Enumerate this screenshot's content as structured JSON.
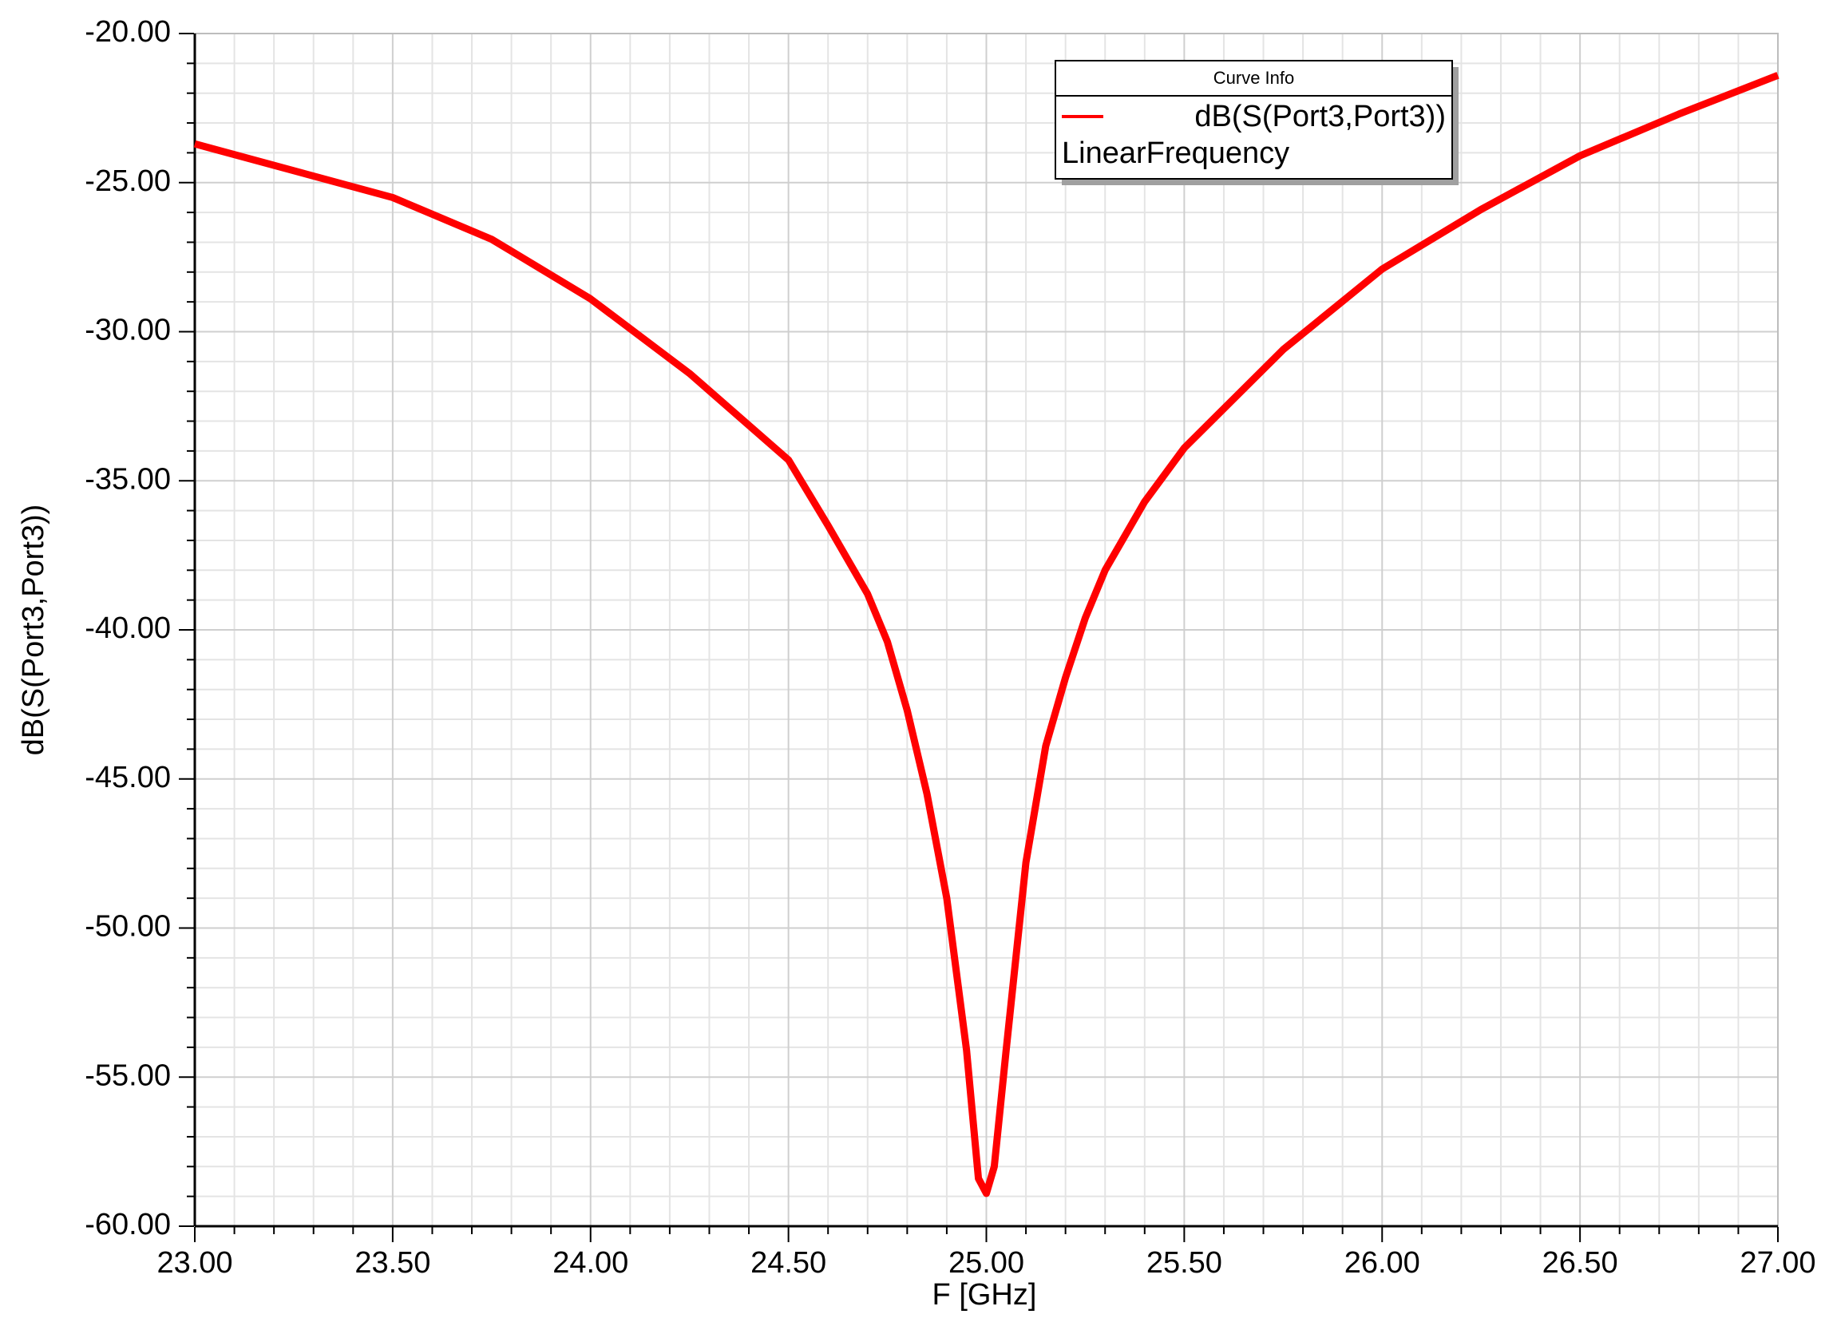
{
  "chart_data": {
    "type": "line",
    "legend_title": "Curve Info",
    "x_label": "F [GHz]",
    "y_label": "dB(S(Port3,Port3))",
    "x": [
      23.0,
      23.25,
      23.5,
      23.75,
      24.0,
      24.25,
      24.5,
      24.6,
      24.7,
      24.75,
      24.8,
      24.85,
      24.9,
      24.95,
      24.98,
      25.0,
      25.02,
      25.05,
      25.1,
      25.15,
      25.2,
      25.25,
      25.3,
      25.4,
      25.5,
      25.75,
      26.0,
      26.25,
      26.5,
      26.75,
      27.0
    ],
    "series": [
      {
        "name": "dB(S(Port3,Port3))",
        "context": "LinearFrequency",
        "color": "#ff0000",
        "values": [
          -23.7,
          -24.6,
          -25.5,
          -26.9,
          -28.9,
          -31.4,
          -34.3,
          -36.5,
          -38.8,
          -40.4,
          -42.7,
          -45.5,
          -49.0,
          -54.1,
          -58.4,
          -58.9,
          -58.0,
          -54.1,
          -47.8,
          -43.9,
          -41.6,
          -39.6,
          -38.0,
          -35.7,
          -33.9,
          -30.6,
          -27.9,
          -25.9,
          -24.1,
          -22.7,
          -21.4
        ]
      }
    ],
    "xlim": [
      23.0,
      27.0
    ],
    "xticks": [
      {
        "value": 23,
        "label": "23.00"
      },
      {
        "value": 23.5,
        "label": "23.50"
      },
      {
        "value": 24,
        "label": "24.00"
      },
      {
        "value": 24.5,
        "label": "24.50"
      },
      {
        "value": 25,
        "label": "25.00"
      },
      {
        "value": 25.5,
        "label": "25.50"
      },
      {
        "value": 26,
        "label": "26.00"
      },
      {
        "value": 26.5,
        "label": "26.50"
      },
      {
        "value": 27,
        "label": "27.00"
      }
    ],
    "ylim": [
      -60,
      -20
    ],
    "yticks": [
      {
        "value": -60,
        "label": "-60.00"
      },
      {
        "value": -55,
        "label": "-55.00"
      },
      {
        "value": -50,
        "label": "-50.00"
      },
      {
        "value": -45,
        "label": "-45.00"
      },
      {
        "value": -40,
        "label": "-40.00"
      },
      {
        "value": -35,
        "label": "-35.00"
      },
      {
        "value": -30,
        "label": "-30.00"
      },
      {
        "value": -25,
        "label": "-25.00"
      },
      {
        "value": -20,
        "label": "-20.00"
      }
    ],
    "grid": true,
    "minor_grid_divisions": 5,
    "legend_position": "top-right"
  }
}
